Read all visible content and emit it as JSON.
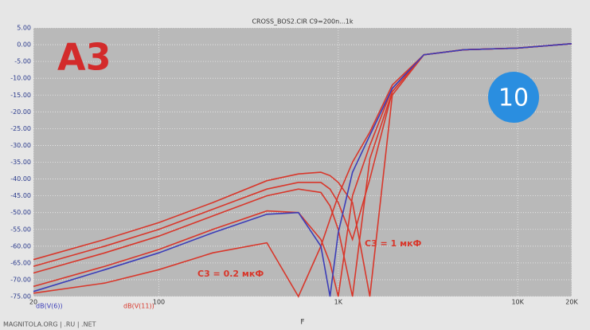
{
  "chart_data": {
    "type": "line",
    "title": "CROSS_BOS2.CIR C9=200n...1k",
    "xlabel": "F",
    "xscale": "log",
    "grid": true,
    "x": [
      20,
      50,
      100,
      200,
      400,
      600,
      800,
      900,
      1000,
      1200,
      1500,
      2000,
      3000,
      5000,
      10000,
      20000
    ],
    "series": [
      {
        "name": "dB(V(6))",
        "color": "#3b3db8",
        "values": [
          -73.5,
          -67,
          -62,
          -56,
          -50.5,
          -50,
          -60,
          -75,
          -56,
          -38,
          -27,
          -13,
          -3,
          -1.5,
          -1,
          0.3
        ]
      },
      {
        "name": "dB(V(11))",
        "color": "#d8372b",
        "values": [
          -72,
          -66,
          -61,
          -55,
          -49.5,
          -50,
          -58,
          -65,
          -75,
          -45,
          -30,
          -13,
          -3,
          -1.5,
          -1,
          0.3
        ]
      },
      {
        "color": "#d8372b",
        "values": [
          -74,
          -71,
          -67,
          -62,
          -59,
          -75,
          -60,
          -52,
          -45,
          -35,
          -26,
          -12,
          -3,
          -1.5,
          -1,
          0.3
        ]
      },
      {
        "color": "#d8372b",
        "values": [
          -68,
          -62,
          -57,
          -51,
          -45,
          -43,
          -44,
          -48,
          -55,
          -75,
          -34,
          -14,
          -3,
          -1.5,
          -1,
          0.3
        ]
      },
      {
        "color": "#d8372b",
        "values": [
          -66,
          -60,
          -55,
          -49,
          -43,
          -41,
          -41,
          -43,
          -47,
          -58,
          -40,
          -14,
          -3,
          -1.5,
          -1,
          0.3
        ]
      },
      {
        "color": "#d8372b",
        "values": [
          -64,
          -58,
          -53,
          -47,
          -40.5,
          -38.5,
          -38,
          -39,
          -41,
          -47,
          -75,
          -15,
          -3,
          -1.5,
          -1,
          0.3
        ]
      }
    ],
    "xlim": [
      20,
      20000
    ],
    "xticks": [
      20,
      100,
      {
        "value": 1000,
        "label": "1K"
      },
      {
        "value": 10000,
        "label": "10K"
      },
      {
        "value": 20000,
        "label": "20K"
      }
    ],
    "ylim": [
      -75,
      5
    ],
    "yticks": [
      {
        "value": 5,
        "label": "5.00"
      },
      {
        "value": 0,
        "label": "0.00"
      },
      {
        "value": -5,
        "label": "-5.00"
      },
      {
        "value": -10,
        "label": "-10.00"
      },
      {
        "value": -15,
        "label": "-15.00"
      },
      {
        "value": -20,
        "label": "-20.00"
      },
      {
        "value": -25,
        "label": "-25.00"
      },
      {
        "value": -30,
        "label": "-30.00"
      },
      {
        "value": -35,
        "label": "-35.00"
      },
      {
        "value": -40,
        "label": "-40.00"
      },
      {
        "value": -45,
        "label": "-45.00"
      },
      {
        "value": -50,
        "label": "-50.00"
      },
      {
        "value": -55,
        "label": "-55.00"
      },
      {
        "value": -60,
        "label": "-60.00"
      },
      {
        "value": -65,
        "label": "-65.00"
      },
      {
        "value": -70,
        "label": "-70.00"
      },
      {
        "value": -75,
        "label": "-75.00"
      }
    ],
    "annotations": [
      "C3 = 0.2 мкФ",
      "C3 = 1 мкФ",
      "A3",
      "10",
      "MAGNITOLA.ORG | .RU | .NET"
    ]
  }
}
